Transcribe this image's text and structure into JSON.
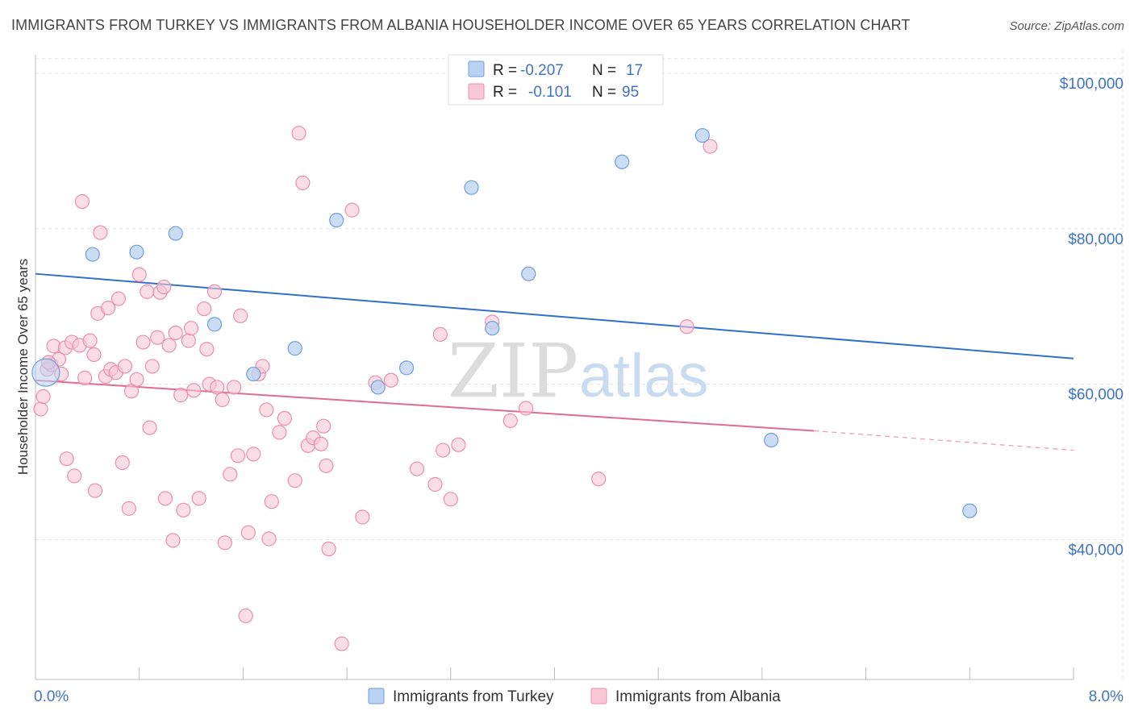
{
  "title": "IMMIGRANTS FROM TURKEY VS IMMIGRANTS FROM ALBANIA HOUSEHOLDER INCOME OVER 65 YEARS CORRELATION CHART",
  "source": "Source: ZipAtlas.com",
  "watermark": {
    "zip": "ZIP",
    "atlas": "atlas"
  },
  "colors": {
    "turkey_fill": "#b8d2f2",
    "turkey_stroke": "#6f9fd8",
    "turkey_line": "#3070c8",
    "albania_fill": "#f8c6d5",
    "albania_stroke": "#e890ad",
    "albania_line": "#e06c94",
    "axis_text": "#3f74c4",
    "grid": "#e2e2e2"
  },
  "legend": {
    "r_label": "R =",
    "n_label": "N =",
    "rows": [
      {
        "r": "-0.207",
        "n": "17"
      },
      {
        "r": "-0.101",
        "n": "95"
      }
    ]
  },
  "chart_data": {
    "type": "scatter",
    "title": "IMMIGRANTS FROM TURKEY VS IMMIGRANTS FROM ALBANIA HOUSEHOLDER INCOME OVER 65 YEARS CORRELATION CHART",
    "xlabel": "",
    "ylabel": "Householder Income Over 65 years",
    "xlim": [
      0,
      8
    ],
    "ylim": [
      22000,
      103000
    ],
    "x_tick_labels": [
      "0.0%",
      "8.0%"
    ],
    "y_ticks": [
      40000,
      60000,
      80000,
      100000
    ],
    "y_tick_labels": [
      "$40,000",
      "$60,000",
      "$80,000",
      "$100,000"
    ],
    "grid": true,
    "legend_position": "top-center",
    "series": [
      {
        "name": "Immigrants from Turkey",
        "r": -0.207,
        "n": 17,
        "trend": {
          "x": [
            0.0,
            8.0
          ],
          "y": [
            74200,
            63300
          ]
        },
        "points": [
          {
            "x": 0.08,
            "y": 61500,
            "big": true
          },
          {
            "x": 0.44,
            "y": 76700
          },
          {
            "x": 0.78,
            "y": 77000
          },
          {
            "x": 1.08,
            "y": 79400
          },
          {
            "x": 1.38,
            "y": 67700
          },
          {
            "x": 1.68,
            "y": 61300
          },
          {
            "x": 2.0,
            "y": 64600
          },
          {
            "x": 2.32,
            "y": 81100
          },
          {
            "x": 2.64,
            "y": 59600
          },
          {
            "x": 2.86,
            "y": 62100
          },
          {
            "x": 3.36,
            "y": 85300
          },
          {
            "x": 3.52,
            "y": 67200
          },
          {
            "x": 3.8,
            "y": 74200
          },
          {
            "x": 4.52,
            "y": 88600
          },
          {
            "x": 5.14,
            "y": 92000
          },
          {
            "x": 5.67,
            "y": 52800
          },
          {
            "x": 7.2,
            "y": 43700
          }
        ]
      },
      {
        "name": "Immigrants from Albania",
        "r": -0.101,
        "n": 95,
        "trend": {
          "x": [
            0.0,
            6.0
          ],
          "y": [
            60500,
            54000
          ],
          "dashed_x": [
            6.0,
            8.0
          ],
          "dashed_y": [
            54000,
            51500
          ]
        },
        "points": [
          {
            "x": 0.04,
            "y": 56800
          },
          {
            "x": 0.06,
            "y": 58400
          },
          {
            "x": 0.09,
            "y": 61900
          },
          {
            "x": 0.12,
            "y": 62500
          },
          {
            "x": 0.14,
            "y": 64900
          },
          {
            "x": 0.18,
            "y": 63200
          },
          {
            "x": 0.2,
            "y": 61300
          },
          {
            "x": 0.23,
            "y": 64700
          },
          {
            "x": 0.24,
            "y": 50400
          },
          {
            "x": 0.28,
            "y": 65400
          },
          {
            "x": 0.3,
            "y": 48200
          },
          {
            "x": 0.34,
            "y": 65000
          },
          {
            "x": 0.36,
            "y": 83500
          },
          {
            "x": 0.38,
            "y": 60800
          },
          {
            "x": 0.42,
            "y": 65600
          },
          {
            "x": 0.45,
            "y": 63800
          },
          {
            "x": 0.46,
            "y": 46300
          },
          {
            "x": 0.48,
            "y": 69100
          },
          {
            "x": 0.5,
            "y": 79500
          },
          {
            "x": 0.54,
            "y": 61000
          },
          {
            "x": 0.56,
            "y": 69800
          },
          {
            "x": 0.58,
            "y": 61900
          },
          {
            "x": 0.62,
            "y": 61500
          },
          {
            "x": 0.64,
            "y": 71000
          },
          {
            "x": 0.67,
            "y": 49900
          },
          {
            "x": 0.69,
            "y": 62300
          },
          {
            "x": 0.72,
            "y": 44000
          },
          {
            "x": 0.74,
            "y": 59100
          },
          {
            "x": 0.78,
            "y": 60600
          },
          {
            "x": 0.8,
            "y": 74100
          },
          {
            "x": 0.83,
            "y": 65400
          },
          {
            "x": 0.86,
            "y": 71900
          },
          {
            "x": 0.88,
            "y": 54400
          },
          {
            "x": 0.9,
            "y": 62300
          },
          {
            "x": 0.94,
            "y": 66000
          },
          {
            "x": 0.96,
            "y": 71800
          },
          {
            "x": 0.99,
            "y": 72500
          },
          {
            "x": 1.0,
            "y": 45300
          },
          {
            "x": 1.03,
            "y": 65000
          },
          {
            "x": 1.06,
            "y": 39900
          },
          {
            "x": 1.08,
            "y": 66600
          },
          {
            "x": 1.12,
            "y": 58600
          },
          {
            "x": 1.14,
            "y": 43800
          },
          {
            "x": 1.18,
            "y": 65600
          },
          {
            "x": 1.2,
            "y": 67200
          },
          {
            "x": 1.22,
            "y": 59200
          },
          {
            "x": 1.26,
            "y": 45300
          },
          {
            "x": 1.3,
            "y": 69700
          },
          {
            "x": 1.32,
            "y": 64500
          },
          {
            "x": 1.34,
            "y": 60000
          },
          {
            "x": 1.38,
            "y": 71900
          },
          {
            "x": 1.4,
            "y": 59600
          },
          {
            "x": 1.44,
            "y": 58000
          },
          {
            "x": 1.46,
            "y": 39600
          },
          {
            "x": 1.5,
            "y": 48400
          },
          {
            "x": 1.53,
            "y": 59600
          },
          {
            "x": 1.56,
            "y": 50800
          },
          {
            "x": 1.58,
            "y": 68800
          },
          {
            "x": 1.62,
            "y": 30200
          },
          {
            "x": 1.64,
            "y": 40900
          },
          {
            "x": 1.68,
            "y": 51000
          },
          {
            "x": 1.72,
            "y": 61300
          },
          {
            "x": 1.75,
            "y": 62300
          },
          {
            "x": 1.78,
            "y": 56700
          },
          {
            "x": 1.8,
            "y": 40100
          },
          {
            "x": 1.82,
            "y": 44900
          },
          {
            "x": 1.88,
            "y": 53800
          },
          {
            "x": 1.92,
            "y": 55600
          },
          {
            "x": 2.0,
            "y": 47600
          },
          {
            "x": 2.03,
            "y": 92300
          },
          {
            "x": 2.06,
            "y": 85900
          },
          {
            "x": 2.1,
            "y": 52100
          },
          {
            "x": 2.14,
            "y": 53100
          },
          {
            "x": 2.2,
            "y": 52300
          },
          {
            "x": 2.22,
            "y": 54600
          },
          {
            "x": 2.24,
            "y": 49500
          },
          {
            "x": 2.26,
            "y": 38800
          },
          {
            "x": 2.36,
            "y": 26600
          },
          {
            "x": 2.44,
            "y": 82400
          },
          {
            "x": 2.52,
            "y": 42900
          },
          {
            "x": 2.62,
            "y": 60200
          },
          {
            "x": 2.74,
            "y": 60500
          },
          {
            "x": 2.94,
            "y": 49100
          },
          {
            "x": 3.08,
            "y": 47100
          },
          {
            "x": 3.12,
            "y": 66400
          },
          {
            "x": 3.14,
            "y": 51500
          },
          {
            "x": 3.2,
            "y": 45200
          },
          {
            "x": 3.26,
            "y": 52200
          },
          {
            "x": 3.52,
            "y": 68000
          },
          {
            "x": 3.66,
            "y": 55300
          },
          {
            "x": 3.78,
            "y": 56900
          },
          {
            "x": 4.34,
            "y": 47800
          },
          {
            "x": 5.02,
            "y": 67400
          },
          {
            "x": 5.2,
            "y": 90600
          },
          {
            "x": 0.1,
            "y": 62800
          }
        ]
      }
    ]
  },
  "bottom_legend": [
    {
      "label": "Immigrants from Turkey"
    },
    {
      "label": "Immigrants from Albania"
    }
  ]
}
